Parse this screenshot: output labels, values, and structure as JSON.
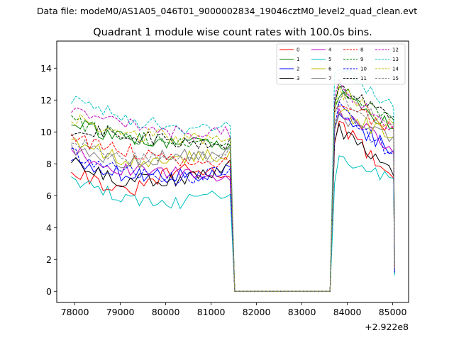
{
  "suptitle": "Data file: modeM0/AS1A05_046T01_9000002834_19046cztM0_level2_quad_clean.evt",
  "chart_data": {
    "type": "line",
    "title": "Quadrant 1 module wise count rates with 100.0s bins.",
    "xlabel": "",
    "ylabel": "",
    "x_offset_label": "+2.922e8",
    "xlim": [
      77600,
      85350
    ],
    "ylim": [
      -0.7,
      15.7
    ],
    "xticks": [
      78000,
      79000,
      80000,
      81000,
      82000,
      83000,
      84000,
      85000
    ],
    "xtick_labels": [
      "78000",
      "79000",
      "80000",
      "81000",
      "82000",
      "83000",
      "84000",
      "85000"
    ],
    "yticks": [
      0,
      2,
      4,
      6,
      8,
      10,
      12,
      14
    ],
    "ytick_labels": [
      "0",
      "2",
      "4",
      "6",
      "8",
      "10",
      "12",
      "14"
    ],
    "legend_position": "top-right",
    "segments": {
      "a": {
        "start": 77920,
        "end": 81420,
        "step": 100
      },
      "b": {
        "start": 83620,
        "end": 85020,
        "step": 100
      },
      "gap_start": 81520,
      "gap_end": 83620
    },
    "series": [
      {
        "name": "0",
        "color": "#ff0000",
        "dash": "solid",
        "level_a": [
          7.7,
          6.1,
          7.6,
          7.4
        ],
        "level_b": [
          10.8,
          7.1
        ],
        "end_value": 1.2
      },
      {
        "name": "1",
        "color": "#008000",
        "dash": "solid",
        "level_a": [
          10.6,
          9.5,
          9.4,
          9.2
        ],
        "level_b": [
          12.8,
          10.2
        ],
        "end_value": 1.6
      },
      {
        "name": "2",
        "color": "#0000ff",
        "dash": "solid",
        "level_a": [
          8.3,
          7.3,
          7.2,
          7.6
        ],
        "level_b": [
          11.3,
          8.8
        ],
        "end_value": 1.1
      },
      {
        "name": "3",
        "color": "#000000",
        "dash": "solid",
        "level_a": [
          8.1,
          6.9,
          7.0,
          7.8
        ],
        "level_b": [
          10.3,
          7.2
        ],
        "end_value": 1.3
      },
      {
        "name": "4",
        "color": "#bf00bf",
        "dash": "solid",
        "level_a": [
          8.9,
          7.6,
          7.4,
          7.2
        ],
        "level_b": [
          11.8,
          8.6
        ],
        "end_value": 1.2
      },
      {
        "name": "5",
        "color": "#00bfbf",
        "dash": "solid",
        "level_a": [
          7.1,
          5.9,
          5.6,
          6.1
        ],
        "level_b": [
          8.3,
          7.0
        ],
        "end_value": 1.0
      },
      {
        "name": "6",
        "color": "#bfbf00",
        "dash": "solid",
        "level_a": [
          9.4,
          8.2,
          8.3,
          8.6
        ],
        "level_b": [
          11.6,
          9.6
        ],
        "end_value": 1.4
      },
      {
        "name": "7",
        "color": "#808080",
        "dash": "solid",
        "level_a": [
          9.0,
          8.0,
          8.6,
          8.5
        ],
        "level_b": [
          11.2,
          9.6
        ],
        "end_value": 1.3
      },
      {
        "name": "8",
        "color": "#ff0000",
        "dash": "dashed",
        "level_a": [
          9.6,
          8.9,
          8.3,
          8.2
        ],
        "level_b": [
          12.2,
          10.0
        ],
        "end_value": 1.4
      },
      {
        "name": "9",
        "color": "#008000",
        "dash": "dashed",
        "level_a": [
          10.7,
          9.7,
          9.4,
          9.2
        ],
        "level_b": [
          13.3,
          10.6
        ],
        "end_value": 1.6
      },
      {
        "name": "10",
        "color": "#0000ff",
        "dash": "dashed",
        "level_a": [
          8.6,
          7.7,
          7.0,
          7.5
        ],
        "level_b": [
          11.7,
          8.4
        ],
        "end_value": 1.2
      },
      {
        "name": "11",
        "color": "#000000",
        "dash": "dashed",
        "level_a": [
          10.2,
          9.8,
          9.5,
          9.2
        ],
        "level_b": [
          13.1,
          10.8
        ],
        "end_value": 1.6
      },
      {
        "name": "12",
        "color": "#bf00bf",
        "dash": "dashed",
        "level_a": [
          11.6,
          10.7,
          10.0,
          9.9
        ],
        "level_b": [
          13.2,
          10.2
        ],
        "end_value": 1.5
      },
      {
        "name": "13",
        "color": "#00bfbf",
        "dash": "dashed",
        "level_a": [
          12.1,
          10.8,
          10.2,
          10.4
        ],
        "level_b": [
          14.5,
          11.3
        ],
        "end_value": 1.7
      },
      {
        "name": "14",
        "color": "#bfbf00",
        "dash": "dashed",
        "level_a": [
          10.9,
          9.9,
          9.6,
          9.4
        ],
        "level_b": [
          12.9,
          10.3
        ],
        "end_value": 1.5
      },
      {
        "name": "15",
        "color": "#808080",
        "dash": "dashed",
        "level_a": [
          9.5,
          8.4,
          8.2,
          8.7
        ],
        "level_b": [
          12.5,
          10.2
        ],
        "end_value": 1.4
      }
    ]
  }
}
